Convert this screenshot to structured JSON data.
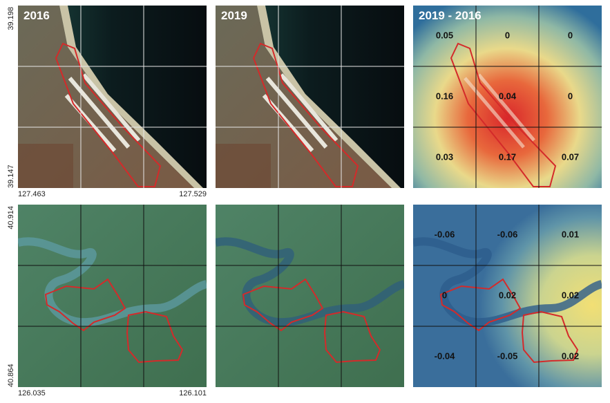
{
  "rows": [
    {
      "lat_top": "39.198",
      "lat_bottom": "39.147",
      "lon_left": "127.463",
      "lon_right": "127.529",
      "panels": [
        {
          "title": "2016"
        },
        {
          "title": "2019"
        },
        {
          "title": "2019 - 2016",
          "cells": [
            [
              "0.05",
              "0",
              "0"
            ],
            [
              "0.16",
              "0.04",
              "0"
            ],
            [
              "0.03",
              "0.17",
              "0.07"
            ]
          ]
        }
      ]
    },
    {
      "lat_top": "40.914",
      "lat_bottom": "40.864",
      "lon_left": "126.035",
      "lon_right": "126.101",
      "panels": [
        {},
        {},
        {
          "cells": [
            [
              "-0.06",
              "-0.06",
              "0.01"
            ],
            [
              "0",
              "0.02",
              "0.02"
            ],
            [
              "-0.04",
              "-0.05",
              "0.02"
            ]
          ]
        }
      ]
    }
  ]
}
